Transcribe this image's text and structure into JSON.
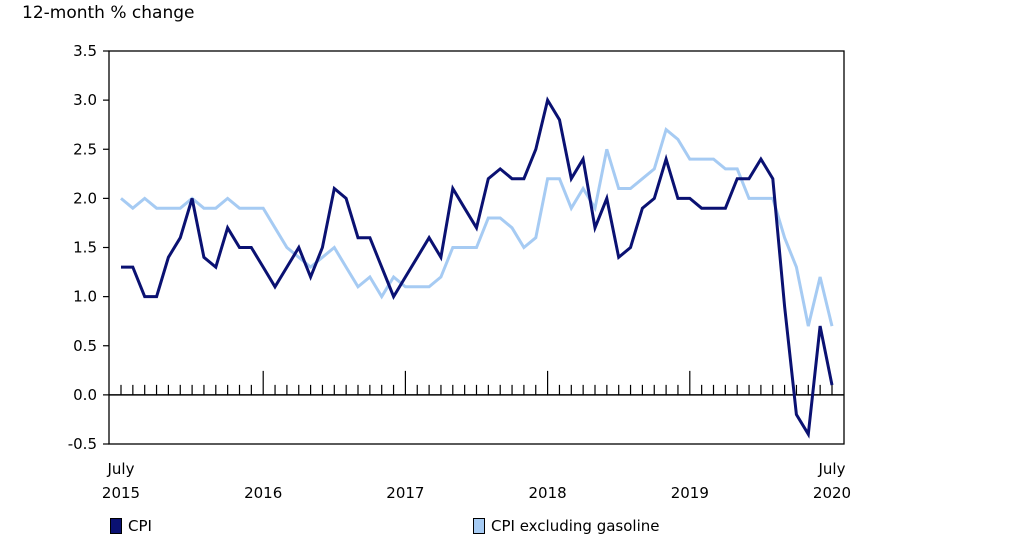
{
  "chart_data": {
    "type": "line",
    "ylabel": "12-month % change",
    "ylim": [
      -0.5,
      3.5
    ],
    "yticks": [
      "3.5",
      "3.0",
      "2.5",
      "2.0",
      "1.5",
      "1.0",
      "0.5",
      "0.0",
      "-0.5"
    ],
    "ytick_values": [
      3.5,
      3.0,
      2.5,
      2.0,
      1.5,
      1.0,
      0.5,
      0.0,
      -0.5
    ],
    "x_start": "2015-07",
    "x_end": "2020-07",
    "xticks": [
      {
        "line1": "July",
        "line2": "2015",
        "month": "2015-07"
      },
      {
        "line1": "",
        "line2": "2016",
        "month": "2016-07"
      },
      {
        "line1": "",
        "line2": "2017",
        "month": "2017-07"
      },
      {
        "line1": "",
        "line2": "2018",
        "month": "2018-07"
      },
      {
        "line1": "",
        "line2": "2019",
        "month": "2019-07"
      },
      {
        "line1": "July",
        "line2": "2020",
        "month": "2020-07"
      }
    ],
    "grid": false,
    "legend_position": "bottom",
    "series": [
      {
        "name": "CPI",
        "color": "#0a1172",
        "values": [
          1.3,
          1.3,
          1.0,
          1.0,
          1.4,
          1.6,
          2.0,
          1.4,
          1.3,
          1.7,
          1.5,
          1.5,
          1.3,
          1.1,
          1.3,
          1.5,
          1.2,
          1.5,
          2.1,
          2.0,
          1.6,
          1.6,
          1.3,
          1.0,
          1.2,
          1.4,
          1.6,
          1.4,
          2.1,
          1.9,
          1.7,
          2.2,
          2.3,
          2.2,
          2.2,
          2.5,
          3.0,
          2.8,
          2.2,
          2.4,
          1.7,
          2.0,
          1.4,
          1.5,
          1.9,
          2.0,
          2.4,
          2.0,
          2.0,
          1.9,
          1.9,
          1.9,
          2.2,
          2.2,
          2.4,
          2.2,
          0.9,
          -0.2,
          -0.4,
          0.7,
          0.1
        ]
      },
      {
        "name": "CPI excluding gasoline",
        "color": "#a6cbf3",
        "values": [
          2.0,
          1.9,
          2.0,
          1.9,
          1.9,
          1.9,
          2.0,
          1.9,
          1.9,
          2.0,
          1.9,
          1.9,
          1.9,
          1.7,
          1.5,
          1.4,
          1.3,
          1.4,
          1.5,
          1.3,
          1.1,
          1.2,
          1.0,
          1.2,
          1.1,
          1.1,
          1.1,
          1.2,
          1.5,
          1.5,
          1.5,
          1.8,
          1.8,
          1.7,
          1.5,
          1.6,
          2.2,
          2.2,
          1.9,
          2.1,
          1.9,
          2.5,
          2.1,
          2.1,
          2.2,
          2.3,
          2.7,
          2.6,
          2.4,
          2.4,
          2.4,
          2.3,
          2.3,
          2.0,
          2.0,
          2.0,
          1.6,
          1.3,
          0.7,
          1.2,
          0.7
        ]
      }
    ]
  }
}
